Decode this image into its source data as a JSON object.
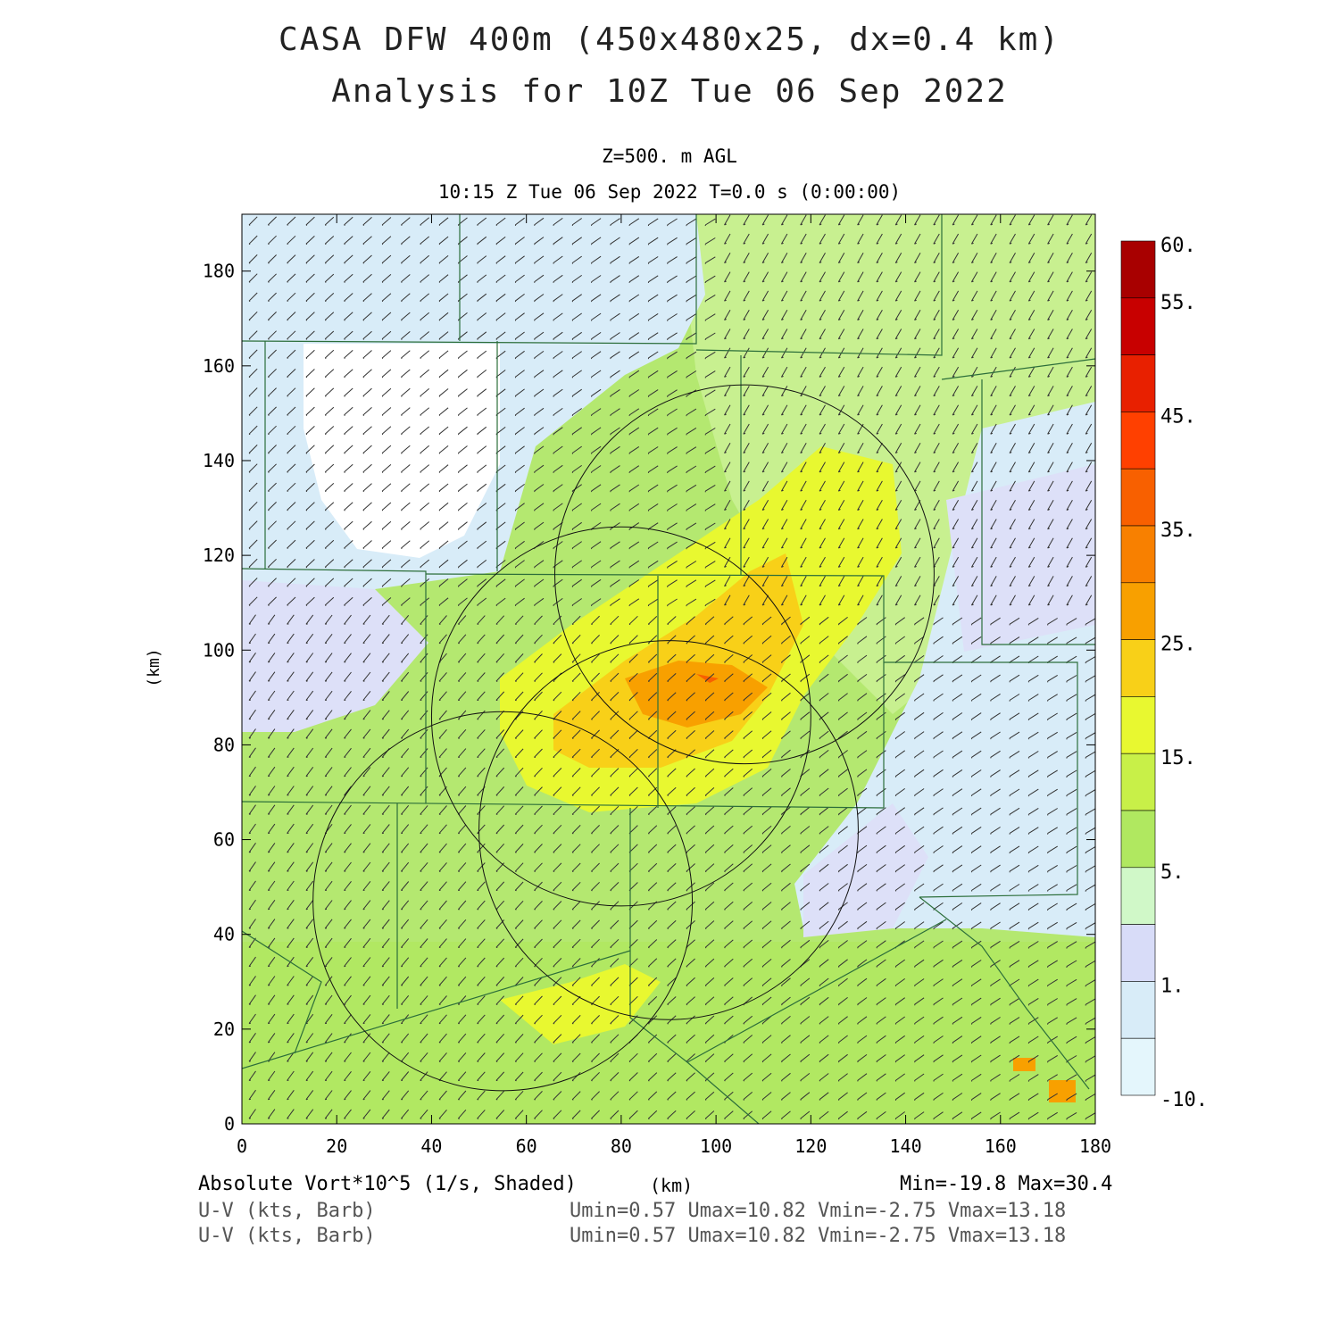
{
  "title": {
    "line1": "CASA DFW 400m (450x480x25, dx=0.4 km)",
    "line2": "Analysis for 10Z Tue 06 Sep 2022"
  },
  "subtitle": {
    "level": "Z=500. m AGL",
    "time": "10:15 Z Tue 06 Sep 2022   T=0.0 s (0:00:00)"
  },
  "footer": {
    "field1": "Absolute Vort*10^5 (1/s, Shaded)",
    "field1_unit": "(km)",
    "field1_range": "Min=-19.8 Max=30.4",
    "field2": "U-V (kts, Barb)",
    "field2_range": "Umin=0.57 Umax=10.82 Vmin=-2.75 Vmax=13.18",
    "field3": "U-V (kts, Barb)",
    "field3_range": "Umin=0.57 Umax=10.82 Vmin=-2.75 Vmax=13.18"
  },
  "chart_data": {
    "type": "heatmap",
    "title": "CASA DFW 400m (450x480x25, dx=0.4 km)",
    "xlabel": "(km)",
    "ylabel": "(km)",
    "xlim": [
      0,
      180
    ],
    "ylim": [
      0,
      192
    ],
    "x_ticks": [
      "0",
      "20",
      "40",
      "60",
      "80",
      "100",
      "120",
      "140",
      "160",
      "180"
    ],
    "y_ticks": [
      "0",
      "20",
      "40",
      "60",
      "80",
      "100",
      "120",
      "140",
      "160",
      "180"
    ],
    "x_tick_values": [
      0,
      20,
      40,
      60,
      80,
      100,
      120,
      140,
      160,
      180
    ],
    "y_tick_values": [
      0,
      20,
      40,
      60,
      80,
      100,
      120,
      140,
      160,
      180
    ],
    "field": "Absolute Vort*10^5 (1/s)",
    "min": -19.8,
    "max": 30.4,
    "colorbar": {
      "labels": [
        "60.",
        "55.",
        "45.",
        "35.",
        "25.",
        "15.",
        "5.",
        "1.",
        "-10."
      ],
      "colors": [
        "#a80000",
        "#c80000",
        "#e82000",
        "#ff4000",
        "#f86000",
        "#f88000",
        "#f8a000",
        "#f8d018",
        "#e8f830",
        "#c8f048",
        "#b0e860",
        "#d0f8c8",
        "#d8dcf8",
        "#d8ecf8",
        "#e4f6fc"
      ]
    },
    "radar_rings_km": [
      {
        "cx": 106,
        "cy": 116,
        "r": 40
      },
      {
        "cx": 80,
        "cy": 86,
        "r": 40
      },
      {
        "cx": 90,
        "cy": 62,
        "r": 40
      },
      {
        "cx": 55,
        "cy": 47,
        "r": 40
      }
    ],
    "wind_barbs": "U-V (kts)",
    "grid": false
  }
}
